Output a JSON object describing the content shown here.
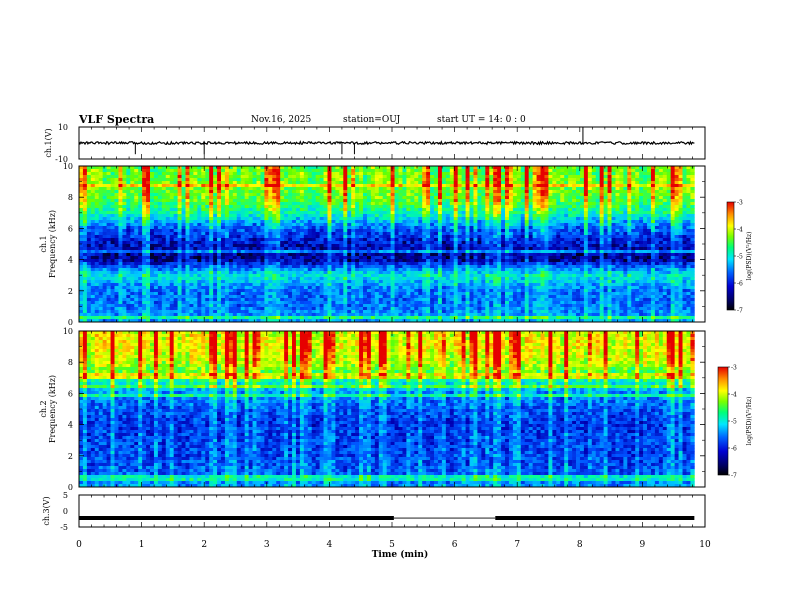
{
  "header": {
    "title": "VLF Spectra",
    "date": "Nov.16, 2025",
    "station": "station=OUJ",
    "start_ut": "start  UT =   14: 0  : 0"
  },
  "colors": {
    "background": "#ffffff",
    "axis": "#000000",
    "colormap_stops": [
      "#000000",
      "#0000b4",
      "#0050ff",
      "#00c8ff",
      "#00ffa0",
      "#64ff00",
      "#ffff00",
      "#ff9600",
      "#e60000"
    ]
  },
  "chart_data": [
    {
      "id": "ch1-waveform",
      "type": "line",
      "ylabel": "ch.1(V)",
      "ylim": [
        -10,
        10
      ],
      "yticks": [
        10,
        -10
      ],
      "xlim": [
        0,
        10
      ],
      "baseline": 0,
      "samples_note": "noisy waveform around 0 V with occasional negative spikes",
      "spikes_x": [
        0.9,
        2.0,
        4.2,
        4.4,
        8.05
      ]
    },
    {
      "id": "ch1-spectrogram",
      "type": "heatmap",
      "panel_label": "ch.1",
      "ylabel": "Frequency (kHz)",
      "ylim": [
        0,
        10
      ],
      "yticks": [
        0,
        2,
        4,
        6,
        8,
        10
      ],
      "xlim": [
        0,
        10
      ],
      "data_until_min": 9.83,
      "profile_khz": [
        0,
        1,
        2,
        3,
        4,
        5,
        6,
        7,
        8,
        9,
        10
      ],
      "profile_log_psd": [
        -5.6,
        -5.9,
        -5.9,
        -5.3,
        -6.6,
        -6.4,
        -6.0,
        -5.1,
        -4.6,
        -4.5,
        -4.6
      ],
      "colorbar": {
        "label": "log(PSD)(V²/Hz)",
        "ticks": [
          "-3",
          "-4",
          "-5",
          "-6",
          "-7"
        ],
        "range": [
          -7,
          -3
        ]
      }
    },
    {
      "id": "ch2-spectrogram",
      "type": "heatmap",
      "panel_label": "ch.2",
      "ylabel": "Frequency (kHz)",
      "ylim": [
        0,
        10
      ],
      "yticks": [
        0,
        2,
        4,
        6,
        8,
        10
      ],
      "xlim": [
        0,
        10
      ],
      "data_until_min": 9.83,
      "profile_khz": [
        0,
        1,
        2,
        3,
        4,
        5,
        6,
        7,
        8,
        9,
        10
      ],
      "profile_log_psd": [
        -5.7,
        -6.0,
        -6.1,
        -6.1,
        -6.2,
        -6.0,
        -5.8,
        -4.9,
        -4.2,
        -4.0,
        -4.1
      ],
      "colorbar": {
        "label": "log(PSD)(V²/Hz)",
        "ticks": [
          "-3",
          "-4",
          "-5",
          "-6",
          "-7"
        ],
        "range": [
          -7,
          -3
        ]
      }
    },
    {
      "id": "ch3-waveform",
      "type": "line",
      "ylabel": "ch.3(V)",
      "ylim": [
        -5,
        5
      ],
      "yticks": [
        5,
        0,
        -5
      ],
      "xlim": [
        0,
        10
      ],
      "segments": [
        {
          "x0": 0,
          "x1": 5.03,
          "y": -2.2
        },
        {
          "x0": 5.03,
          "x1": 6.65,
          "y": -2.2,
          "thin": true
        },
        {
          "x0": 6.65,
          "x1": 9.83,
          "y": -2.2
        }
      ]
    }
  ],
  "xaxis": {
    "label": "Time  (min)",
    "ticks": [
      "0",
      "1",
      "2",
      "3",
      "4",
      "5",
      "6",
      "7",
      "8",
      "9",
      "10"
    ]
  }
}
